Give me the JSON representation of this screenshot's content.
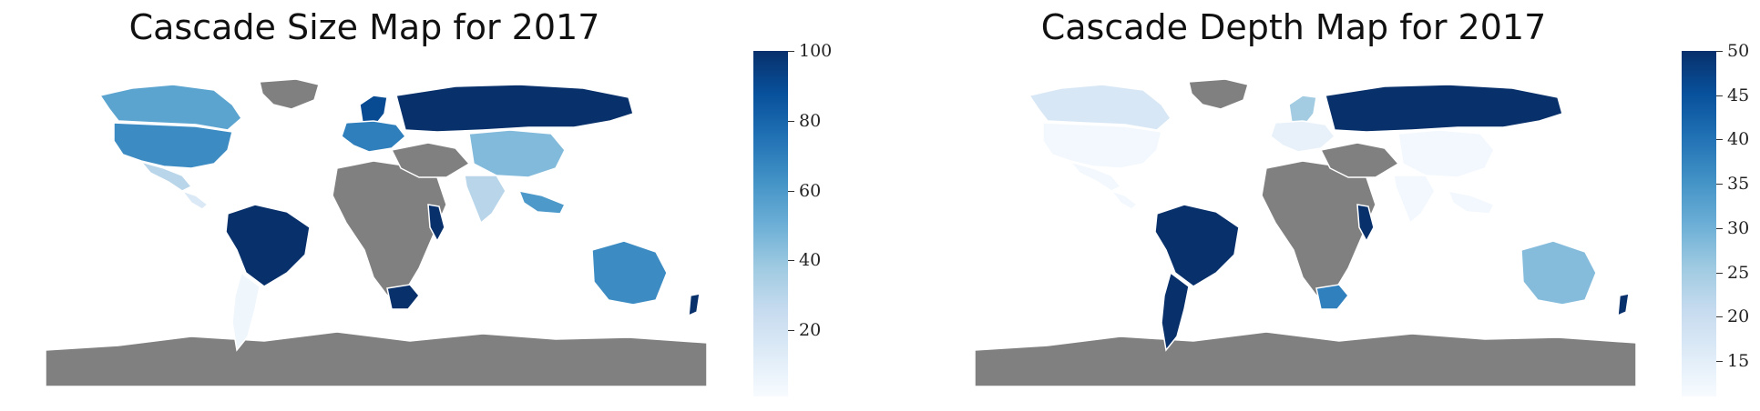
{
  "maps": [
    {
      "id": "size",
      "title": "Cascade Size Map for 2017",
      "colorbar": {
        "min": 1,
        "max": 100,
        "ticks": [
          "100",
          "80",
          "60",
          "40",
          "20"
        ],
        "tick_values": [
          100,
          80,
          60,
          40,
          20
        ]
      },
      "regions": {
        "greenland": "no-data",
        "africa": "no-data",
        "middle_east": "no-data",
        "antarctica": "no-data",
        "canada": 55,
        "usa": 65,
        "mexico": 30,
        "central_america": 15,
        "brazil": 100,
        "south_cone": 5,
        "russia": 100,
        "europe": 70,
        "scandinavia": 90,
        "china": 45,
        "india": 30,
        "south_africa": 100,
        "east_africa": 100,
        "australia": 65,
        "new_zealand": 100,
        "se_asia": 60
      }
    },
    {
      "id": "depth",
      "title": "Cascade Depth Map for 2017",
      "colorbar": {
        "min": 11,
        "max": 50,
        "ticks": [
          "50",
          "45",
          "40",
          "35",
          "30",
          "25",
          "20",
          "15"
        ],
        "tick_values": [
          50,
          45,
          40,
          35,
          30,
          25,
          20,
          15
        ]
      },
      "regions": {
        "greenland": "no-data",
        "africa": "no-data",
        "middle_east": "no-data",
        "antarctica": "no-data",
        "canada": 17,
        "usa": 12,
        "mexico": 12,
        "central_america": 12,
        "brazil": 50,
        "south_cone": 50,
        "russia": 50,
        "europe": 14,
        "scandinavia": 25,
        "china": 12,
        "india": 12,
        "south_africa": 38,
        "east_africa": 50,
        "australia": 28,
        "new_zealand": 50,
        "se_asia": 12
      }
    }
  ],
  "colors": {
    "no_data": "#808080",
    "border": "#ffffff",
    "scale": [
      "#f7fbff",
      "#deebf7",
      "#c6dbef",
      "#9ecae1",
      "#6baed6",
      "#4292c6",
      "#2171b5",
      "#08519c",
      "#08306b"
    ]
  }
}
